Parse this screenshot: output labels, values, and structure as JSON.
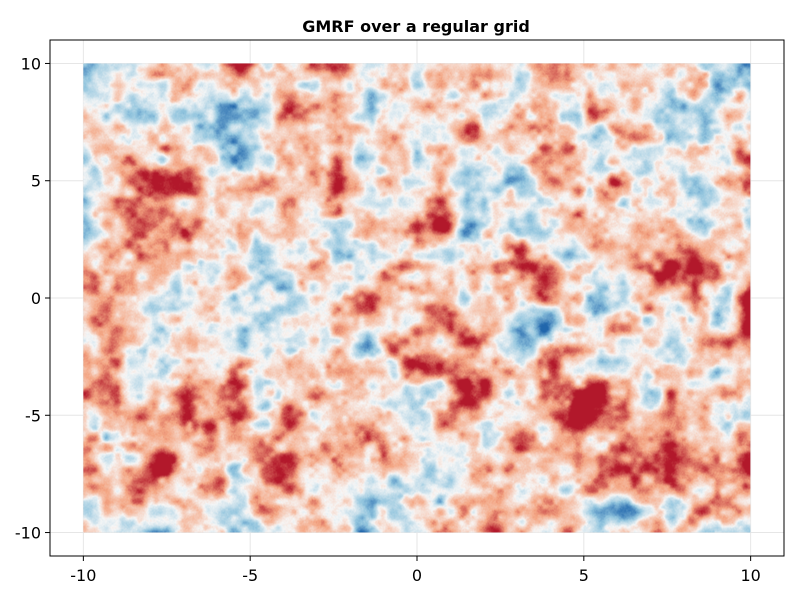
{
  "chart_data": {
    "type": "heatmap",
    "title": "GMRF over a regular grid",
    "xlabel": "",
    "ylabel": "",
    "xlim": [
      -11,
      11
    ],
    "ylim": [
      -11,
      11
    ],
    "field_extent": {
      "x": [
        -10,
        10
      ],
      "y": [
        -10,
        10
      ]
    },
    "xticks": [
      -10,
      -5,
      0,
      5,
      10
    ],
    "yticks": [
      -10,
      -5,
      0,
      5,
      10
    ],
    "xtick_labels": [
      "-10",
      "-5",
      "0",
      "5",
      "10"
    ],
    "ytick_labels": [
      "-10",
      "-5",
      "0",
      "5",
      "10"
    ],
    "grid": true,
    "colormap": {
      "name": "RdBu (reversed)",
      "negative": "#2166ac",
      "zero": "#f7f7f7",
      "positive": "#b2182b"
    },
    "frame_color": "#000000",
    "grid_color": "#e6e6e6"
  }
}
